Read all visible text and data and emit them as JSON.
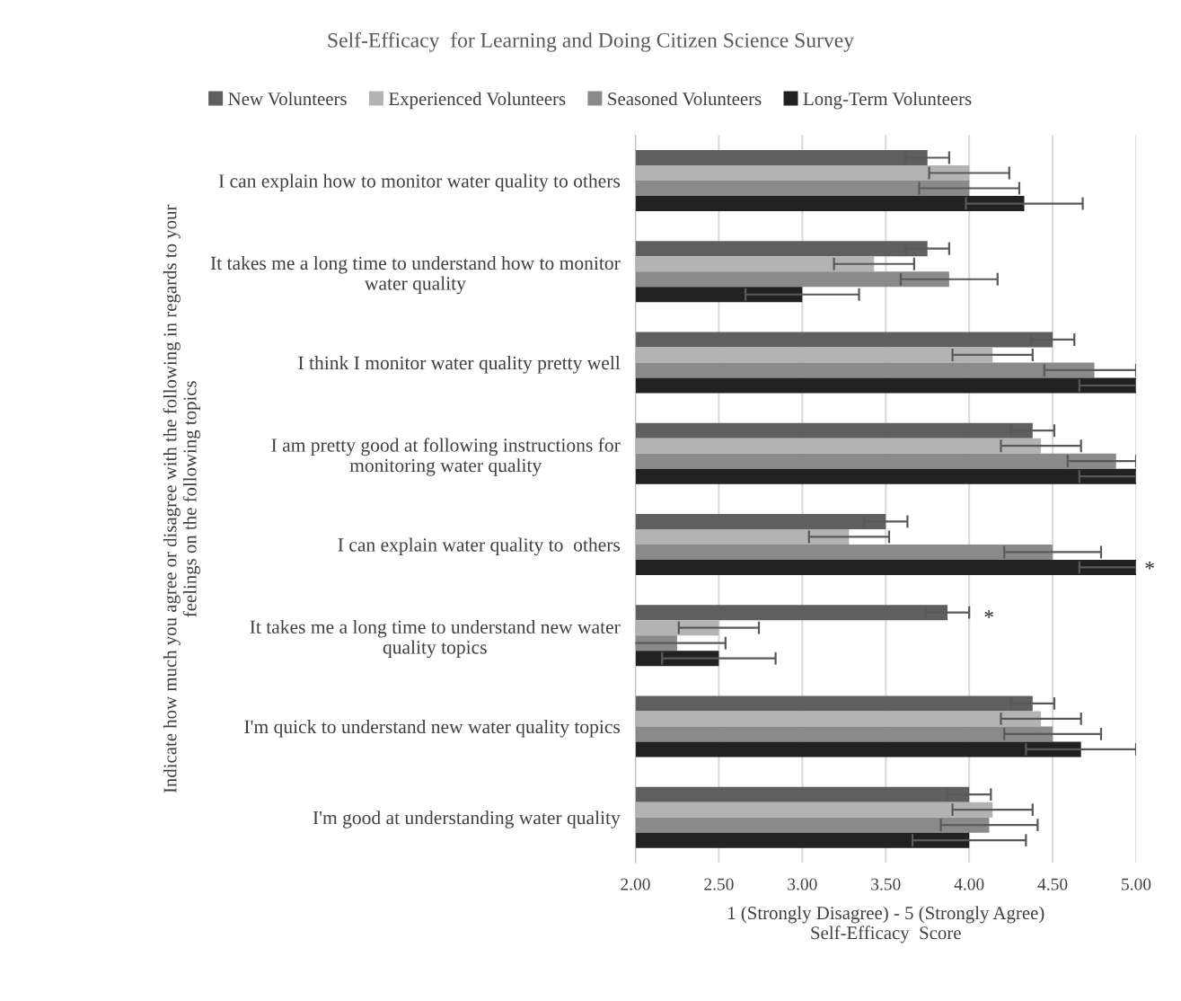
{
  "chart_data": {
    "type": "bar",
    "orientation": "horizontal",
    "title": "Self-Efficacy  for Learning and Doing Citizen Science Survey",
    "xlabel": "1 (Strongly Disagree) - 5 (Strongly Agree)\nSelf-Efficacy  Score",
    "ylabel": "Indicate how much you agree or disagree with the following in regards to your\nfeelings on the following topics",
    "categories": [
      "I can explain how to monitor water quality to others",
      "It takes me a long time to understand how to monitor\nwater quality",
      "I think I monitor water quality pretty well",
      "I am pretty good at following instructions for\nmonitoring water quality",
      "I can explain water quality to  others",
      "It takes me a long time to understand new water\nquality topics",
      "I'm quick to understand new water quality topics",
      "I'm good at understanding water quality"
    ],
    "series": [
      {
        "name": "New Volunteers",
        "color": "#5f5f5f",
        "values": [
          3.75,
          3.75,
          4.5,
          4.38,
          3.5,
          3.87,
          4.38,
          4.0
        ],
        "errors": [
          0.13,
          0.13,
          0.13,
          0.13,
          0.13,
          0.13,
          0.13,
          0.13
        ]
      },
      {
        "name": "Experienced Volunteers",
        "color": "#b3b3b3",
        "values": [
          4.0,
          3.43,
          4.14,
          4.43,
          3.28,
          2.5,
          4.43,
          4.14
        ],
        "errors": [
          0.24,
          0.24,
          0.24,
          0.24,
          0.24,
          0.24,
          0.24,
          0.24
        ]
      },
      {
        "name": "Seasoned Volunteers",
        "color": "#8a8a8a",
        "values": [
          4.0,
          3.88,
          4.75,
          4.88,
          4.5,
          2.25,
          4.5,
          4.12
        ],
        "errors": [
          0.3,
          0.29,
          [
            4.45,
            5.0
          ],
          [
            4.59,
            5.0
          ],
          0.29,
          0.29,
          0.29,
          0.29
        ]
      },
      {
        "name": "Long-Term Volunteers",
        "color": "#212121",
        "values": [
          4.33,
          3.0,
          5.0,
          5.0,
          5.0,
          2.5,
          4.67,
          4.0
        ],
        "errors": [
          0.35,
          0.34,
          [
            4.66,
            5.0
          ],
          [
            4.66,
            5.0
          ],
          [
            4.66,
            5.0
          ],
          0.34,
          [
            4.34,
            5.0
          ],
          0.34
        ]
      }
    ],
    "xlim": [
      2,
      5
    ],
    "xticks": [
      {
        "value": 2,
        "label": "2.00"
      },
      {
        "value": 2.5,
        "label": "2.50"
      },
      {
        "value": 3,
        "label": "3.00"
      },
      {
        "value": 3.5,
        "label": "3.50"
      },
      {
        "value": 4,
        "label": "4.00"
      },
      {
        "value": 4.5,
        "label": "4.50"
      },
      {
        "value": 5,
        "label": "5.00"
      }
    ],
    "grid": "x",
    "legend": "top",
    "annotations": [
      "*",
      "*"
    ]
  }
}
